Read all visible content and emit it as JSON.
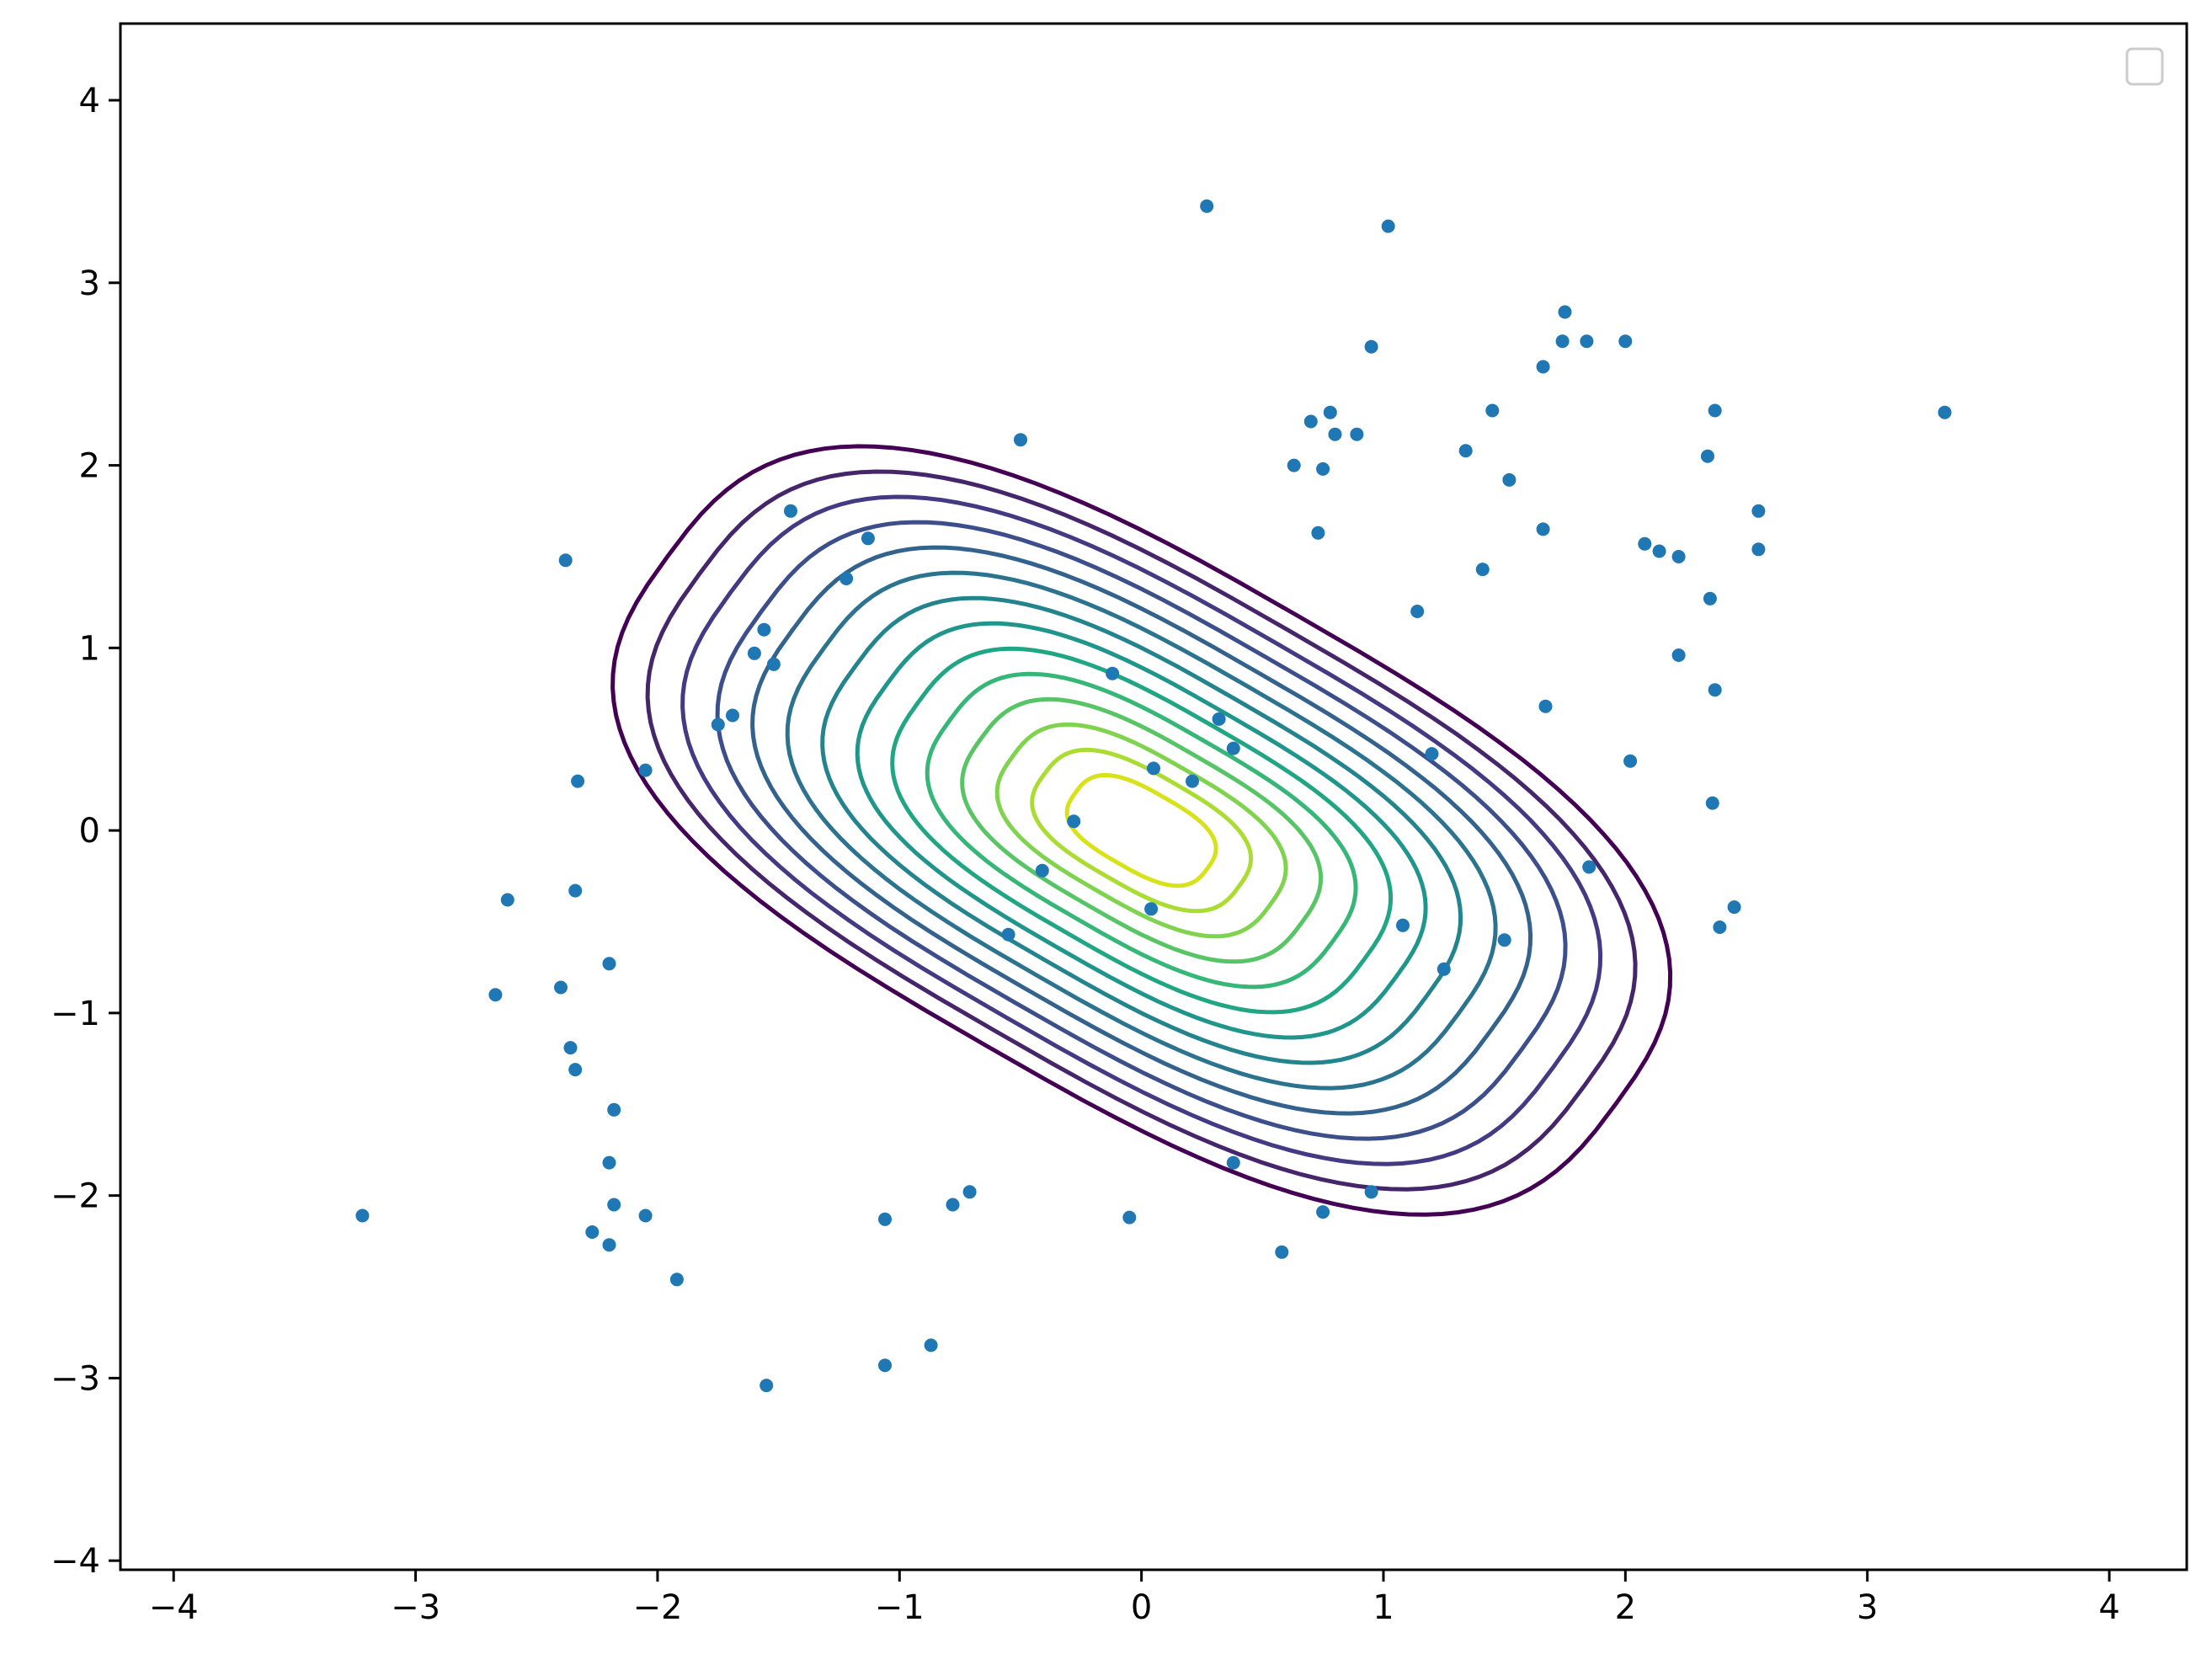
{
  "chart_data": {
    "type": "scatter",
    "title": "",
    "xlabel": "",
    "ylabel": "",
    "xlim": [
      -4.22,
      4.32
    ],
    "ylim": [
      -4.05,
      4.42
    ],
    "x_ticks": [
      -4,
      -3,
      -2,
      -1,
      0,
      1,
      2,
      3,
      4
    ],
    "y_ticks": [
      -4,
      -3,
      -2,
      -1,
      0,
      1,
      2,
      3,
      4
    ],
    "x_tick_labels": [
      "−4",
      "−3",
      "−2",
      "−1",
      "0",
      "1",
      "2",
      "3",
      "4"
    ],
    "y_tick_labels": [
      "−4",
      "−3",
      "−2",
      "−1",
      "0",
      "1",
      "2",
      "3",
      "4"
    ],
    "grid": false,
    "legend": {
      "position": "top-right",
      "entries": []
    },
    "scatter_color": "#1f77b4",
    "series": [
      {
        "points": [
          [
            0.27,
            3.42
          ],
          [
            1.02,
            3.31
          ],
          [
            1.75,
            2.84
          ],
          [
            1.74,
            2.68
          ],
          [
            1.84,
            2.68
          ],
          [
            2.0,
            2.68
          ],
          [
            0.95,
            2.65
          ],
          [
            1.66,
            2.54
          ],
          [
            3.32,
            2.29
          ],
          [
            2.37,
            2.3
          ],
          [
            1.45,
            2.3
          ],
          [
            0.78,
            2.29
          ],
          [
            0.7,
            2.24
          ],
          [
            -0.5,
            2.14
          ],
          [
            0.8,
            2.17
          ],
          [
            0.89,
            2.17
          ],
          [
            2.34,
            2.05
          ],
          [
            1.34,
            2.08
          ],
          [
            0.63,
            2.0
          ],
          [
            0.75,
            1.98
          ],
          [
            1.52,
            1.92
          ],
          [
            -1.45,
            1.75
          ],
          [
            2.55,
            1.75
          ],
          [
            2.55,
            1.54
          ],
          [
            2.08,
            1.57
          ],
          [
            2.14,
            1.53
          ],
          [
            2.22,
            1.5
          ],
          [
            -1.13,
            1.6
          ],
          [
            -2.38,
            1.48
          ],
          [
            -1.22,
            1.38
          ],
          [
            2.35,
            1.27
          ],
          [
            -1.56,
            1.1
          ],
          [
            -1.52,
            0.91
          ],
          [
            -1.6,
            0.97
          ],
          [
            2.22,
            0.96
          ],
          [
            2.37,
            0.77
          ],
          [
            -1.69,
            0.63
          ],
          [
            -1.75,
            0.58
          ],
          [
            -2.05,
            0.33
          ],
          [
            -2.33,
            0.27
          ],
          [
            2.36,
            0.15
          ],
          [
            -2.62,
            -0.38
          ],
          [
            -2.34,
            -0.33
          ],
          [
            2.45,
            -0.42
          ],
          [
            2.39,
            -0.53
          ],
          [
            -2.2,
            -0.73
          ],
          [
            -2.67,
            -0.9
          ],
          [
            -2.4,
            -0.86
          ],
          [
            -2.36,
            -1.19
          ],
          [
            -2.34,
            -1.31
          ],
          [
            -2.18,
            -1.53
          ],
          [
            -2.2,
            -1.82
          ],
          [
            -2.18,
            -2.05
          ],
          [
            -2.05,
            -2.11
          ],
          [
            -2.27,
            -2.2
          ],
          [
            -2.2,
            -2.27
          ],
          [
            -3.22,
            -2.11
          ],
          [
            -1.92,
            -2.46
          ],
          [
            -1.55,
            -3.04
          ],
          [
            -1.06,
            -2.93
          ],
          [
            -0.87,
            -2.82
          ],
          [
            0.58,
            -2.31
          ],
          [
            -1.06,
            -2.13
          ],
          [
            0.95,
            -1.98
          ],
          [
            0.75,
            -2.09
          ],
          [
            -0.05,
            -2.12
          ],
          [
            0.38,
            -1.82
          ],
          [
            -0.71,
            -1.98
          ],
          [
            -0.78,
            -2.05
          ],
          [
            1.08,
            -0.52
          ],
          [
            1.25,
            -0.76
          ],
          [
            1.5,
            -0.6
          ],
          [
            1.2,
            0.42
          ],
          [
            1.85,
            -0.2
          ],
          [
            2.02,
            0.38
          ],
          [
            1.67,
            0.68
          ],
          [
            1.66,
            1.65
          ],
          [
            1.41,
            1.43
          ],
          [
            1.14,
            1.2
          ],
          [
            0.73,
            1.63
          ],
          [
            -0.12,
            0.86
          ],
          [
            0.05,
            0.34
          ],
          [
            0.32,
            0.61
          ],
          [
            -0.41,
            -0.22
          ],
          [
            -0.28,
            0.05
          ],
          [
            0.04,
            -0.43
          ],
          [
            -0.55,
            -0.57
          ],
          [
            0.21,
            0.27
          ],
          [
            0.38,
            0.45
          ]
        ]
      }
    ],
    "contour_levels": 14,
    "contour_colormap": "viridis"
  }
}
